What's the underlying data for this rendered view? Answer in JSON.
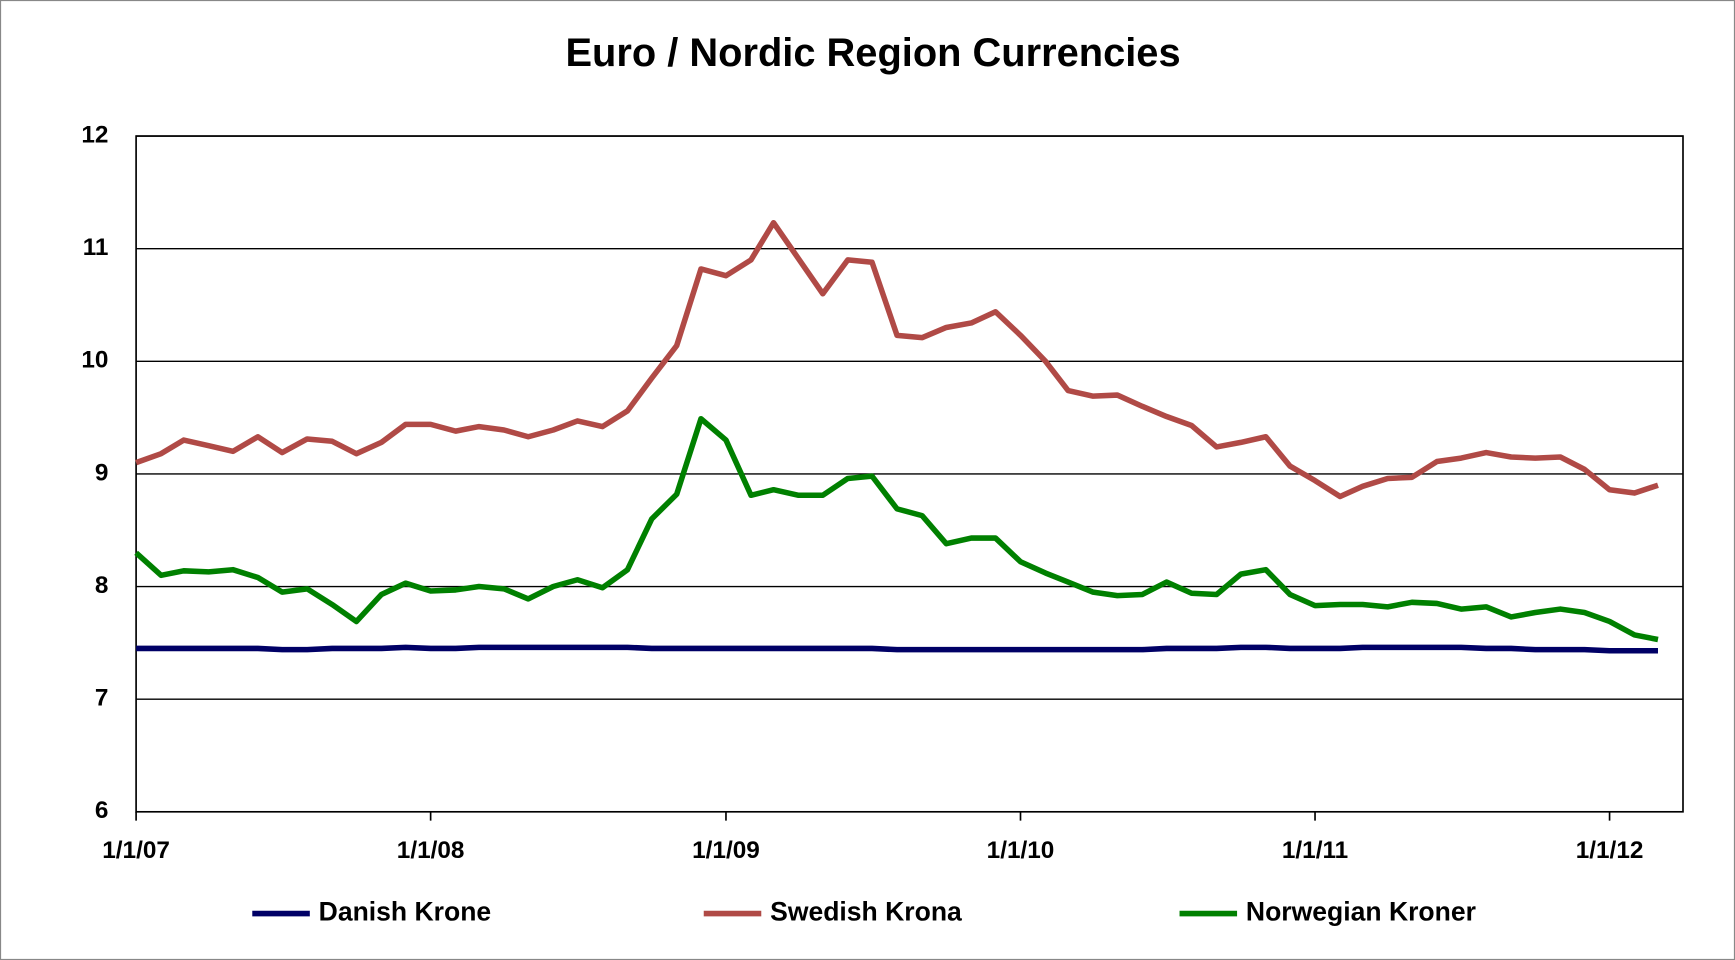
{
  "chart_data": {
    "type": "line",
    "title": "Euro / Nordic Region Currencies",
    "x": [
      "2007-01",
      "2007-02",
      "2007-03",
      "2007-04",
      "2007-05",
      "2007-06",
      "2007-07",
      "2007-08",
      "2007-09",
      "2007-10",
      "2007-11",
      "2007-12",
      "2008-01",
      "2008-02",
      "2008-03",
      "2008-04",
      "2008-05",
      "2008-06",
      "2008-07",
      "2008-08",
      "2008-09",
      "2008-10",
      "2008-11",
      "2008-12",
      "2009-01",
      "2009-02",
      "2009-03",
      "2009-04",
      "2009-05",
      "2009-06",
      "2009-07",
      "2009-08",
      "2009-09",
      "2009-10",
      "2009-11",
      "2009-12",
      "2010-01",
      "2010-02",
      "2010-03",
      "2010-04",
      "2010-05",
      "2010-06",
      "2010-07",
      "2010-08",
      "2010-09",
      "2010-10",
      "2010-11",
      "2010-12",
      "2011-01",
      "2011-02",
      "2011-03",
      "2011-04",
      "2011-05",
      "2011-06",
      "2011-07",
      "2011-08",
      "2011-09",
      "2011-10",
      "2011-11",
      "2011-12",
      "2012-01",
      "2012-02",
      "2012-03"
    ],
    "series": [
      {
        "name": "Danish Krone",
        "color": "#000066",
        "values": [
          7.45,
          7.45,
          7.45,
          7.45,
          7.45,
          7.45,
          7.44,
          7.44,
          7.45,
          7.45,
          7.45,
          7.46,
          7.45,
          7.45,
          7.46,
          7.46,
          7.46,
          7.46,
          7.46,
          7.46,
          7.46,
          7.45,
          7.45,
          7.45,
          7.45,
          7.45,
          7.45,
          7.45,
          7.45,
          7.45,
          7.45,
          7.44,
          7.44,
          7.44,
          7.44,
          7.44,
          7.44,
          7.44,
          7.44,
          7.44,
          7.44,
          7.44,
          7.45,
          7.45,
          7.45,
          7.46,
          7.46,
          7.45,
          7.45,
          7.45,
          7.46,
          7.46,
          7.46,
          7.46,
          7.46,
          7.45,
          7.45,
          7.44,
          7.44,
          7.44,
          7.43,
          7.43,
          7.43
        ]
      },
      {
        "name": "Swedish Krona",
        "color": "#b04a46",
        "values": [
          9.1,
          9.18,
          9.3,
          9.25,
          9.2,
          9.33,
          9.19,
          9.31,
          9.29,
          9.18,
          9.28,
          9.44,
          9.44,
          9.38,
          9.42,
          9.39,
          9.33,
          9.39,
          9.47,
          9.42,
          9.56,
          9.85,
          10.14,
          10.82,
          10.76,
          10.9,
          11.23,
          10.91,
          10.6,
          10.9,
          10.88,
          10.23,
          10.21,
          10.3,
          10.34,
          10.44,
          10.23,
          10.0,
          9.74,
          9.69,
          9.7,
          9.6,
          9.51,
          9.43,
          9.24,
          9.28,
          9.33,
          9.07,
          8.94,
          8.8,
          8.89,
          8.96,
          8.97,
          9.11,
          9.14,
          9.19,
          9.15,
          9.14,
          9.15,
          9.04,
          8.86,
          8.83,
          8.9
        ]
      },
      {
        "name": "Norwegian Kroner",
        "color": "#008000",
        "values": [
          8.3,
          8.1,
          8.14,
          8.13,
          8.15,
          8.08,
          7.95,
          7.98,
          7.84,
          7.69,
          7.93,
          8.03,
          7.96,
          7.97,
          8.0,
          7.98,
          7.89,
          8.0,
          8.06,
          7.99,
          8.15,
          8.6,
          8.82,
          9.49,
          9.3,
          8.81,
          8.86,
          8.81,
          8.81,
          8.96,
          8.98,
          8.69,
          8.63,
          8.38,
          8.43,
          8.43,
          8.22,
          8.12,
          8.04,
          7.95,
          7.92,
          7.93,
          8.04,
          7.94,
          7.93,
          8.11,
          8.15,
          7.93,
          7.83,
          7.84,
          7.84,
          7.82,
          7.86,
          7.85,
          7.8,
          7.82,
          7.73,
          7.77,
          7.8,
          7.77,
          7.69,
          7.57,
          7.53
        ]
      }
    ],
    "xlim": [
      "2007-01-01",
      "2012-04-01"
    ],
    "xticks": [
      {
        "value": "2007-01-01",
        "label": "1/1/07"
      },
      {
        "value": "2008-01-01",
        "label": "1/1/08"
      },
      {
        "value": "2009-01-01",
        "label": "1/1/09"
      },
      {
        "value": "2010-01-01",
        "label": "1/1/10"
      },
      {
        "value": "2011-01-01",
        "label": "1/1/11"
      },
      {
        "value": "2012-01-01",
        "label": "1/1/12"
      }
    ],
    "ylim": [
      6,
      12
    ],
    "yticks": [
      6,
      7,
      8,
      9,
      10,
      11,
      12
    ],
    "grid": true,
    "legend": "bottom"
  }
}
